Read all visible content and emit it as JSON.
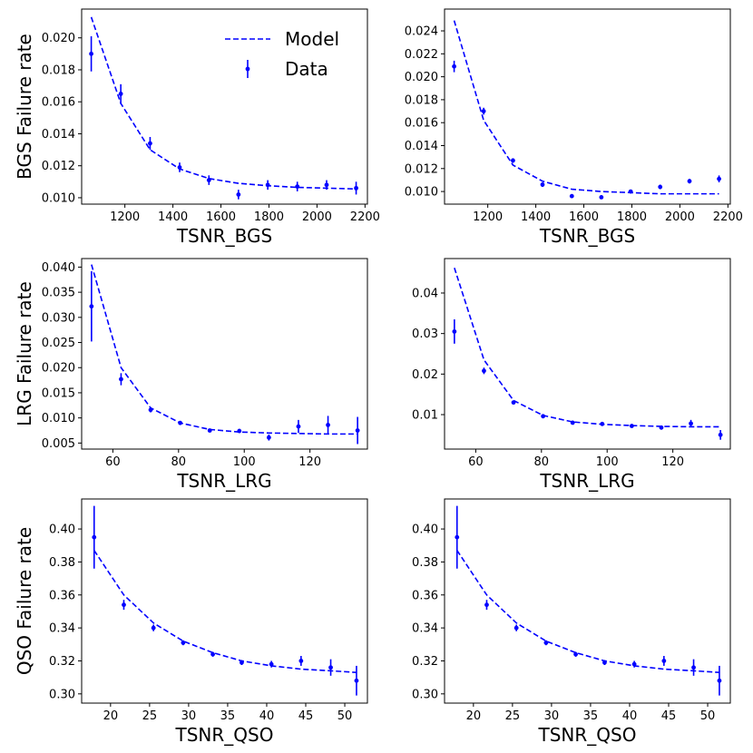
{
  "colors": {
    "series": "#0000ff",
    "axes": "#000000"
  },
  "legend": {
    "model_label": "Model",
    "data_label": "Data",
    "placement": "upper-right"
  },
  "chart_data": [
    {
      "type": "line-errorbar",
      "row": 0,
      "col": 0,
      "xlabel": "TSNR_BGS",
      "ylabel": "BGS Failure rate",
      "xlim": [
        1020,
        2210
      ],
      "ylim": [
        0.0096,
        0.0218
      ],
      "xticks": [
        1200,
        1400,
        1600,
        1800,
        2000,
        2200
      ],
      "yticks": [
        0.01,
        0.012,
        0.014,
        0.016,
        0.018,
        0.02
      ],
      "yticklabels": [
        "0.010",
        "0.012",
        "0.014",
        "0.016",
        "0.018",
        "0.020"
      ],
      "show_legend": true,
      "model": {
        "x": [
          1060,
          1183,
          1305,
          1428,
          1550,
          1673,
          1795,
          1918,
          2040,
          2163
        ],
        "y": [
          0.0213,
          0.0159,
          0.013,
          0.0118,
          0.0112,
          0.0109,
          0.01075,
          0.01065,
          0.0106,
          0.01055
        ]
      },
      "data": {
        "x": [
          1060,
          1183,
          1305,
          1428,
          1550,
          1673,
          1795,
          1918,
          2040,
          2163
        ],
        "y": [
          0.019,
          0.0165,
          0.0134,
          0.0119,
          0.0111,
          0.0102,
          0.0108,
          0.0107,
          0.0108,
          0.0106
        ],
        "err": [
          0.0011,
          0.0006,
          0.0004,
          0.0003,
          0.0003,
          0.0003,
          0.0003,
          0.0003,
          0.0003,
          0.0004
        ]
      }
    },
    {
      "type": "line-errorbar",
      "row": 0,
      "col": 1,
      "xlabel": "TSNR_BGS",
      "ylabel": "",
      "xlim": [
        1020,
        2210
      ],
      "ylim": [
        0.0089,
        0.0259
      ],
      "xticks": [
        1200,
        1400,
        1600,
        1800,
        2000,
        2200
      ],
      "yticks": [
        0.01,
        0.012,
        0.014,
        0.016,
        0.018,
        0.02,
        0.022,
        0.024
      ],
      "yticklabels": [
        "0.010",
        "0.012",
        "0.014",
        "0.016",
        "0.018",
        "0.020",
        "0.022",
        "0.024"
      ],
      "show_legend": false,
      "model": {
        "x": [
          1060,
          1183,
          1305,
          1428,
          1550,
          1673,
          1795,
          1918,
          2040,
          2163
        ],
        "y": [
          0.0249,
          0.0162,
          0.0123,
          0.0109,
          0.0102,
          0.01,
          0.0099,
          0.0098,
          0.0098,
          0.0098
        ]
      },
      "data": {
        "x": [
          1060,
          1183,
          1305,
          1428,
          1550,
          1673,
          1795,
          1918,
          2040,
          2163
        ],
        "y": [
          0.0209,
          0.017,
          0.0127,
          0.0106,
          0.0096,
          0.0095,
          0.01,
          0.0104,
          0.0109,
          0.0111
        ],
        "err": [
          0.0005,
          0.0003,
          0.0002,
          0.0002,
          0.0001,
          0.0001,
          0.0001,
          0.0002,
          0.0002,
          0.0003
        ]
      }
    },
    {
      "type": "line-errorbar",
      "row": 1,
      "col": 0,
      "xlabel": "TSNR_LRG",
      "ylabel": "LRG Failure rate",
      "xlim": [
        50.5,
        137.5
      ],
      "ylim": [
        0.0038,
        0.0417
      ],
      "xticks": [
        60,
        80,
        100,
        120
      ],
      "yticks": [
        0.005,
        0.01,
        0.015,
        0.02,
        0.025,
        0.03,
        0.035,
        0.04
      ],
      "yticklabels": [
        "0.005",
        "0.010",
        "0.015",
        "0.020",
        "0.025",
        "0.030",
        "0.035",
        "0.040"
      ],
      "show_legend": false,
      "model": {
        "x": [
          53.5,
          62.5,
          71.5,
          80.5,
          89.5,
          98.5,
          107.5,
          116.5,
          125.5,
          134.5
        ],
        "y": [
          0.0405,
          0.02,
          0.012,
          0.009,
          0.0077,
          0.0072,
          0.007,
          0.0069,
          0.0068,
          0.0068
        ]
      },
      "data": {
        "x": [
          53.5,
          62.5,
          71.5,
          80.5,
          89.5,
          98.5,
          107.5,
          116.5,
          125.5,
          134.5
        ],
        "y": [
          0.0322,
          0.0177,
          0.0116,
          0.009,
          0.0075,
          0.0074,
          0.0061,
          0.0083,
          0.0086,
          0.0075
        ],
        "err": [
          0.007,
          0.0012,
          0.0005,
          0.0003,
          0.0003,
          0.0004,
          0.0006,
          0.0013,
          0.0018,
          0.0027
        ]
      }
    },
    {
      "type": "line-errorbar",
      "row": 1,
      "col": 1,
      "xlabel": "TSNR_LRG",
      "ylabel": "",
      "xlim": [
        50.5,
        137.5
      ],
      "ylim": [
        0.0015,
        0.0485
      ],
      "xticks": [
        60,
        80,
        100,
        120
      ],
      "yticks": [
        0.01,
        0.02,
        0.03,
        0.04
      ],
      "yticklabels": [
        "0.01",
        "0.02",
        "0.03",
        "0.04"
      ],
      "show_legend": false,
      "model": {
        "x": [
          53.5,
          62.5,
          71.5,
          80.5,
          89.5,
          98.5,
          107.5,
          116.5,
          125.5,
          134.5
        ],
        "y": [
          0.0462,
          0.0235,
          0.0135,
          0.0098,
          0.0082,
          0.0076,
          0.0073,
          0.0071,
          0.007,
          0.007
        ]
      },
      "data": {
        "x": [
          53.5,
          62.5,
          71.5,
          80.5,
          89.5,
          98.5,
          107.5,
          116.5,
          125.5,
          134.5
        ],
        "y": [
          0.0305,
          0.0208,
          0.013,
          0.0096,
          0.008,
          0.0077,
          0.0072,
          0.0068,
          0.0078,
          0.005
        ],
        "err": [
          0.003,
          0.0008,
          0.0004,
          0.0003,
          0.0003,
          0.0003,
          0.0004,
          0.0005,
          0.0009,
          0.0012
        ]
      }
    },
    {
      "type": "line-errorbar",
      "row": 2,
      "col": 0,
      "xlabel": "TSNR_QSO",
      "ylabel": "QSO Failure rate",
      "xlim": [
        16.3,
        52.9
      ],
      "ylim": [
        0.2944,
        0.4182
      ],
      "xticks": [
        20,
        25,
        30,
        35,
        40,
        45,
        50
      ],
      "yticks": [
        0.3,
        0.32,
        0.34,
        0.36,
        0.38,
        0.4
      ],
      "yticklabels": [
        "0.30",
        "0.32",
        "0.34",
        "0.36",
        "0.38",
        "0.40"
      ],
      "show_legend": false,
      "model": {
        "x": [
          17.9,
          21.7,
          25.5,
          29.3,
          33.1,
          36.8,
          40.6,
          44.4,
          48.2,
          51.5
        ],
        "y": [
          0.387,
          0.36,
          0.343,
          0.332,
          0.325,
          0.32,
          0.317,
          0.315,
          0.314,
          0.313
        ]
      },
      "data": {
        "x": [
          17.9,
          21.7,
          25.5,
          29.3,
          33.1,
          36.8,
          40.6,
          44.4,
          48.2,
          51.5
        ],
        "y": [
          0.395,
          0.354,
          0.34,
          0.331,
          0.324,
          0.319,
          0.318,
          0.32,
          0.316,
          0.308
        ],
        "err": [
          0.019,
          0.003,
          0.002,
          0.0015,
          0.0015,
          0.0015,
          0.002,
          0.003,
          0.005,
          0.009
        ]
      }
    },
    {
      "type": "line-errorbar",
      "row": 2,
      "col": 1,
      "xlabel": "TSNR_QSO",
      "ylabel": "",
      "xlim": [
        16.3,
        52.9
      ],
      "ylim": [
        0.2944,
        0.4182
      ],
      "xticks": [
        20,
        25,
        30,
        35,
        40,
        45,
        50
      ],
      "yticks": [
        0.3,
        0.32,
        0.34,
        0.36,
        0.38,
        0.4
      ],
      "yticklabels": [
        "0.30",
        "0.32",
        "0.34",
        "0.36",
        "0.38",
        "0.40"
      ],
      "show_legend": false,
      "model": {
        "x": [
          17.9,
          21.7,
          25.5,
          29.3,
          33.1,
          36.8,
          40.6,
          44.4,
          48.2,
          51.5
        ],
        "y": [
          0.387,
          0.36,
          0.343,
          0.332,
          0.325,
          0.32,
          0.317,
          0.315,
          0.314,
          0.313
        ]
      },
      "data": {
        "x": [
          17.9,
          21.7,
          25.5,
          29.3,
          33.1,
          36.8,
          40.6,
          44.4,
          48.2,
          51.5
        ],
        "y": [
          0.395,
          0.354,
          0.34,
          0.331,
          0.324,
          0.319,
          0.318,
          0.32,
          0.316,
          0.308
        ],
        "err": [
          0.019,
          0.003,
          0.002,
          0.0015,
          0.0015,
          0.0015,
          0.002,
          0.003,
          0.005,
          0.009
        ]
      }
    }
  ]
}
